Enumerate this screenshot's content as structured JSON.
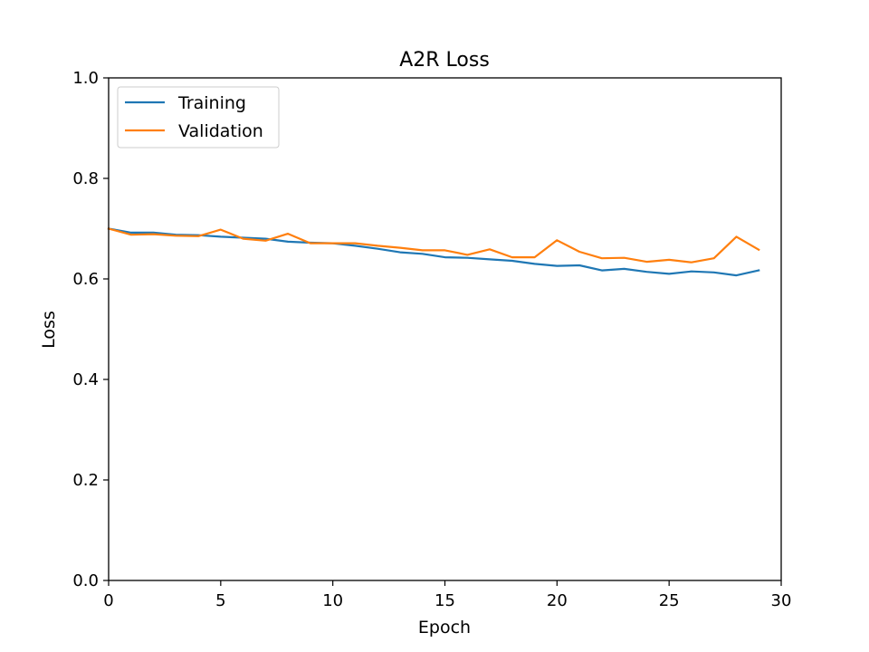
{
  "chart_data": {
    "type": "line",
    "title": "A2R Loss",
    "xlabel": "Epoch",
    "ylabel": "Loss",
    "xlim": [
      0,
      30
    ],
    "ylim": [
      0,
      1.0
    ],
    "xticks": [
      "0",
      "5",
      "10",
      "15",
      "20",
      "25",
      "30"
    ],
    "yticks": [
      "0.0",
      "0.2",
      "0.4",
      "0.6",
      "0.8",
      "1.0"
    ],
    "grid": false,
    "legend_position": "top-left",
    "x": [
      0,
      1,
      2,
      3,
      4,
      5,
      6,
      7,
      8,
      9,
      10,
      11,
      12,
      13,
      14,
      15,
      16,
      17,
      18,
      19,
      20,
      21,
      22,
      23,
      24,
      25,
      26,
      27,
      28,
      29
    ],
    "series": [
      {
        "name": "Training",
        "color": "#1f77b4",
        "values": [
          0.7,
          0.692,
          0.692,
          0.688,
          0.687,
          0.684,
          0.682,
          0.68,
          0.674,
          0.672,
          0.671,
          0.666,
          0.66,
          0.653,
          0.65,
          0.643,
          0.642,
          0.639,
          0.636,
          0.63,
          0.626,
          0.627,
          0.617,
          0.62,
          0.614,
          0.61,
          0.615,
          0.613,
          0.607,
          0.617
        ]
      },
      {
        "name": "Validation",
        "color": "#ff7f0e",
        "values": [
          0.7,
          0.688,
          0.689,
          0.686,
          0.685,
          0.698,
          0.68,
          0.676,
          0.69,
          0.671,
          0.671,
          0.671,
          0.666,
          0.662,
          0.657,
          0.657,
          0.648,
          0.659,
          0.643,
          0.643,
          0.677,
          0.654,
          0.641,
          0.642,
          0.634,
          0.638,
          0.633,
          0.641,
          0.684,
          0.658
        ]
      }
    ]
  }
}
